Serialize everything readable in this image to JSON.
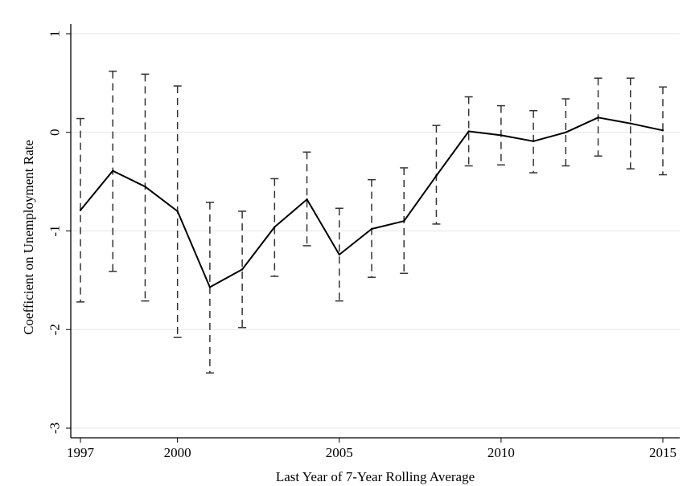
{
  "chart_data": {
    "type": "line",
    "title": "",
    "xlabel": "Last Year of 7-Year Rolling Average",
    "ylabel": "Coefficient on Unemployment Rate",
    "xlim": [
      1997,
      2015
    ],
    "ylim": [
      -3,
      1
    ],
    "x_ticks": [
      1997,
      2000,
      2005,
      2010,
      2015
    ],
    "y_ticks": [
      1,
      0,
      -1,
      -2,
      -3
    ],
    "grid": "horizontal",
    "legend": "none",
    "colors": {
      "line": "#000000",
      "error_bar": "#333333",
      "grid": "#e6e6e6",
      "axis": "#000000"
    },
    "series": [
      {
        "x": [
          1997,
          1998,
          1999,
          2000,
          2001,
          2002,
          2003,
          2004,
          2005,
          2006,
          2007,
          2008,
          2009,
          2010,
          2011,
          2012,
          2013,
          2014,
          2015
        ],
        "values": [
          -0.79,
          -0.39,
          -0.55,
          -0.8,
          -1.57,
          -1.39,
          -0.96,
          -0.68,
          -1.24,
          -0.98,
          -0.9,
          -0.44,
          0.01,
          -0.03,
          -0.09,
          0.0,
          0.15,
          0.09,
          0.02
        ],
        "lower": [
          -1.72,
          -1.41,
          -1.71,
          -2.08,
          -2.44,
          -1.98,
          -1.46,
          -1.15,
          -1.71,
          -1.47,
          -1.43,
          -0.93,
          -0.34,
          -0.33,
          -0.41,
          -0.34,
          -0.24,
          -0.37,
          -0.43
        ],
        "upper": [
          0.14,
          0.62,
          0.59,
          0.47,
          -0.71,
          -0.8,
          -0.47,
          -0.2,
          -0.77,
          -0.48,
          -0.36,
          0.07,
          0.36,
          0.27,
          0.22,
          0.34,
          0.55,
          0.55,
          0.46
        ]
      }
    ]
  }
}
